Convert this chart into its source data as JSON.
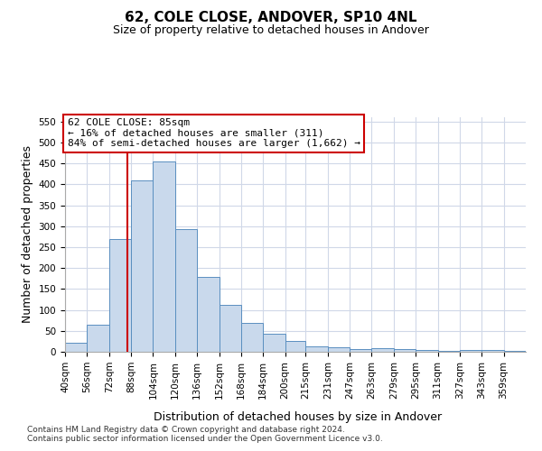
{
  "title": "62, COLE CLOSE, ANDOVER, SP10 4NL",
  "subtitle": "Size of property relative to detached houses in Andover",
  "xlabel": "Distribution of detached houses by size in Andover",
  "ylabel": "Number of detached properties",
  "footnote1": "Contains HM Land Registry data © Crown copyright and database right 2024.",
  "footnote2": "Contains public sector information licensed under the Open Government Licence v3.0.",
  "annotation_line1": "62 COLE CLOSE: 85sqm",
  "annotation_line2": "← 16% of detached houses are smaller (311)",
  "annotation_line3": "84% of semi-detached houses are larger (1,662) →",
  "bar_color": "#c9d9ec",
  "bar_edge_color": "#5a8fc0",
  "ref_line_color": "#cc0000",
  "ref_line_x": 85,
  "categories": [
    "40sqm",
    "56sqm",
    "72sqm",
    "88sqm",
    "104sqm",
    "120sqm",
    "136sqm",
    "152sqm",
    "168sqm",
    "184sqm",
    "200sqm",
    "215sqm",
    "231sqm",
    "247sqm",
    "263sqm",
    "279sqm",
    "295sqm",
    "311sqm",
    "327sqm",
    "343sqm",
    "359sqm"
  ],
  "bin_edges": [
    40,
    56,
    72,
    88,
    104,
    120,
    136,
    152,
    168,
    184,
    200,
    215,
    231,
    247,
    263,
    279,
    295,
    311,
    327,
    343,
    359,
    375
  ],
  "values": [
    22,
    65,
    270,
    410,
    455,
    292,
    178,
    113,
    68,
    43,
    25,
    14,
    11,
    7,
    8,
    7,
    4,
    3,
    5,
    4,
    3
  ],
  "ylim": [
    0,
    560
  ],
  "yticks": [
    0,
    50,
    100,
    150,
    200,
    250,
    300,
    350,
    400,
    450,
    500,
    550
  ],
  "background_color": "#ffffff",
  "grid_color": "#d0d8e8",
  "title_fontsize": 11,
  "subtitle_fontsize": 9,
  "axis_label_fontsize": 9,
  "tick_fontsize": 7.5,
  "footnote_fontsize": 6.5,
  "annotation_fontsize": 8
}
